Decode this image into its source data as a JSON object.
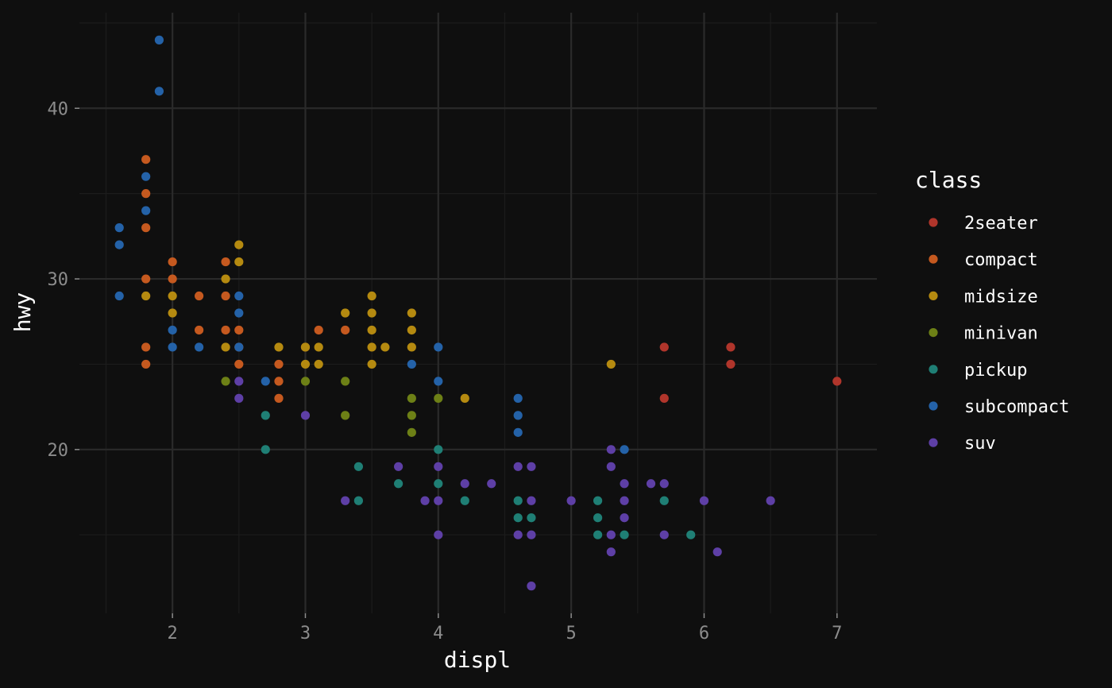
{
  "chart_data": {
    "type": "scatter",
    "title": "",
    "xlabel": "displ",
    "ylabel": "hwy",
    "xlim": [
      1.3,
      7.3
    ],
    "ylim": [
      10.4,
      45.6
    ],
    "x_ticks": [
      2,
      3,
      4,
      5,
      6,
      7
    ],
    "y_ticks": [
      20,
      30,
      40
    ],
    "grid": true,
    "background": "#0f0f0f",
    "grid_major_color": "#2a2a2a",
    "grid_minor_color": "#1c1c1c",
    "legend": {
      "title": "class",
      "position": "right"
    },
    "series": [
      {
        "name": "2seater",
        "color": "#b0352b",
        "points": [
          [
            5.7,
            26
          ],
          [
            5.7,
            23
          ],
          [
            6.2,
            26
          ],
          [
            6.2,
            25
          ],
          [
            7.0,
            24
          ]
        ]
      },
      {
        "name": "compact",
        "color": "#c5591f",
        "points": [
          [
            1.8,
            37
          ],
          [
            1.8,
            35
          ],
          [
            1.8,
            33
          ],
          [
            1.8,
            30
          ],
          [
            1.8,
            26
          ],
          [
            1.8,
            25
          ],
          [
            2.0,
            31
          ],
          [
            2.0,
            30
          ],
          [
            2.2,
            29
          ],
          [
            2.2,
            27
          ],
          [
            2.4,
            31
          ],
          [
            2.4,
            29
          ],
          [
            2.4,
            27
          ],
          [
            2.5,
            27
          ],
          [
            2.5,
            26
          ],
          [
            2.5,
            25
          ],
          [
            2.8,
            25
          ],
          [
            2.8,
            24
          ],
          [
            2.8,
            23
          ],
          [
            3.0,
            26
          ],
          [
            3.1,
            27
          ],
          [
            3.3,
            27
          ]
        ]
      },
      {
        "name": "midsize",
        "color": "#b58a10",
        "points": [
          [
            1.8,
            29
          ],
          [
            2.0,
            29
          ],
          [
            2.0,
            28
          ],
          [
            2.4,
            30
          ],
          [
            2.4,
            26
          ],
          [
            2.5,
            32
          ],
          [
            2.5,
            31
          ],
          [
            2.8,
            26
          ],
          [
            3.0,
            26
          ],
          [
            3.0,
            25
          ],
          [
            3.1,
            26
          ],
          [
            3.1,
            25
          ],
          [
            3.3,
            28
          ],
          [
            3.5,
            29
          ],
          [
            3.5,
            28
          ],
          [
            3.5,
            27
          ],
          [
            3.5,
            26
          ],
          [
            3.5,
            25
          ],
          [
            3.6,
            26
          ],
          [
            3.8,
            28
          ],
          [
            3.8,
            27
          ],
          [
            3.8,
            26
          ],
          [
            4.2,
            23
          ],
          [
            5.3,
            25
          ]
        ]
      },
      {
        "name": "minivan",
        "color": "#6d8016",
        "points": [
          [
            2.4,
            24
          ],
          [
            3.0,
            24
          ],
          [
            3.3,
            24
          ],
          [
            3.3,
            22
          ],
          [
            3.8,
            23
          ],
          [
            3.8,
            22
          ],
          [
            3.8,
            21
          ],
          [
            4.0,
            23
          ]
        ]
      },
      {
        "name": "pickup",
        "color": "#1f7f75",
        "points": [
          [
            2.7,
            22
          ],
          [
            2.7,
            20
          ],
          [
            3.4,
            19
          ],
          [
            3.4,
            17
          ],
          [
            3.7,
            18
          ],
          [
            4.0,
            20
          ],
          [
            4.0,
            18
          ],
          [
            4.2,
            17
          ],
          [
            4.6,
            17
          ],
          [
            4.6,
            16
          ],
          [
            4.7,
            16
          ],
          [
            5.2,
            17
          ],
          [
            5.2,
            16
          ],
          [
            5.2,
            15
          ],
          [
            5.4,
            15
          ],
          [
            5.7,
            17
          ],
          [
            5.9,
            15
          ]
        ]
      },
      {
        "name": "subcompact",
        "color": "#2462a8",
        "points": [
          [
            1.6,
            33
          ],
          [
            1.6,
            32
          ],
          [
            1.6,
            29
          ],
          [
            1.8,
            36
          ],
          [
            1.8,
            34
          ],
          [
            1.9,
            44
          ],
          [
            1.9,
            41
          ],
          [
            2.0,
            27
          ],
          [
            2.0,
            26
          ],
          [
            2.2,
            26
          ],
          [
            2.5,
            29
          ],
          [
            2.5,
            28
          ],
          [
            2.5,
            26
          ],
          [
            2.7,
            24
          ],
          [
            3.8,
            25
          ],
          [
            4.0,
            26
          ],
          [
            4.0,
            24
          ],
          [
            4.6,
            23
          ],
          [
            4.6,
            22
          ],
          [
            4.6,
            21
          ],
          [
            5.4,
            20
          ]
        ]
      },
      {
        "name": "suv",
        "color": "#5e3fa6",
        "points": [
          [
            2.5,
            24
          ],
          [
            2.5,
            23
          ],
          [
            3.0,
            22
          ],
          [
            3.3,
            17
          ],
          [
            3.7,
            19
          ],
          [
            3.9,
            17
          ],
          [
            4.0,
            19
          ],
          [
            4.0,
            17
          ],
          [
            4.0,
            15
          ],
          [
            4.2,
            18
          ],
          [
            4.4,
            18
          ],
          [
            4.6,
            19
          ],
          [
            4.6,
            15
          ],
          [
            4.7,
            19
          ],
          [
            4.7,
            17
          ],
          [
            4.7,
            15
          ],
          [
            4.7,
            12
          ],
          [
            5.0,
            17
          ],
          [
            5.3,
            20
          ],
          [
            5.3,
            19
          ],
          [
            5.3,
            15
          ],
          [
            5.3,
            14
          ],
          [
            5.4,
            18
          ],
          [
            5.4,
            17
          ],
          [
            5.4,
            16
          ],
          [
            5.6,
            18
          ],
          [
            5.7,
            18
          ],
          [
            5.7,
            15
          ],
          [
            6.0,
            17
          ],
          [
            6.1,
            14
          ],
          [
            6.5,
            17
          ]
        ]
      }
    ]
  }
}
